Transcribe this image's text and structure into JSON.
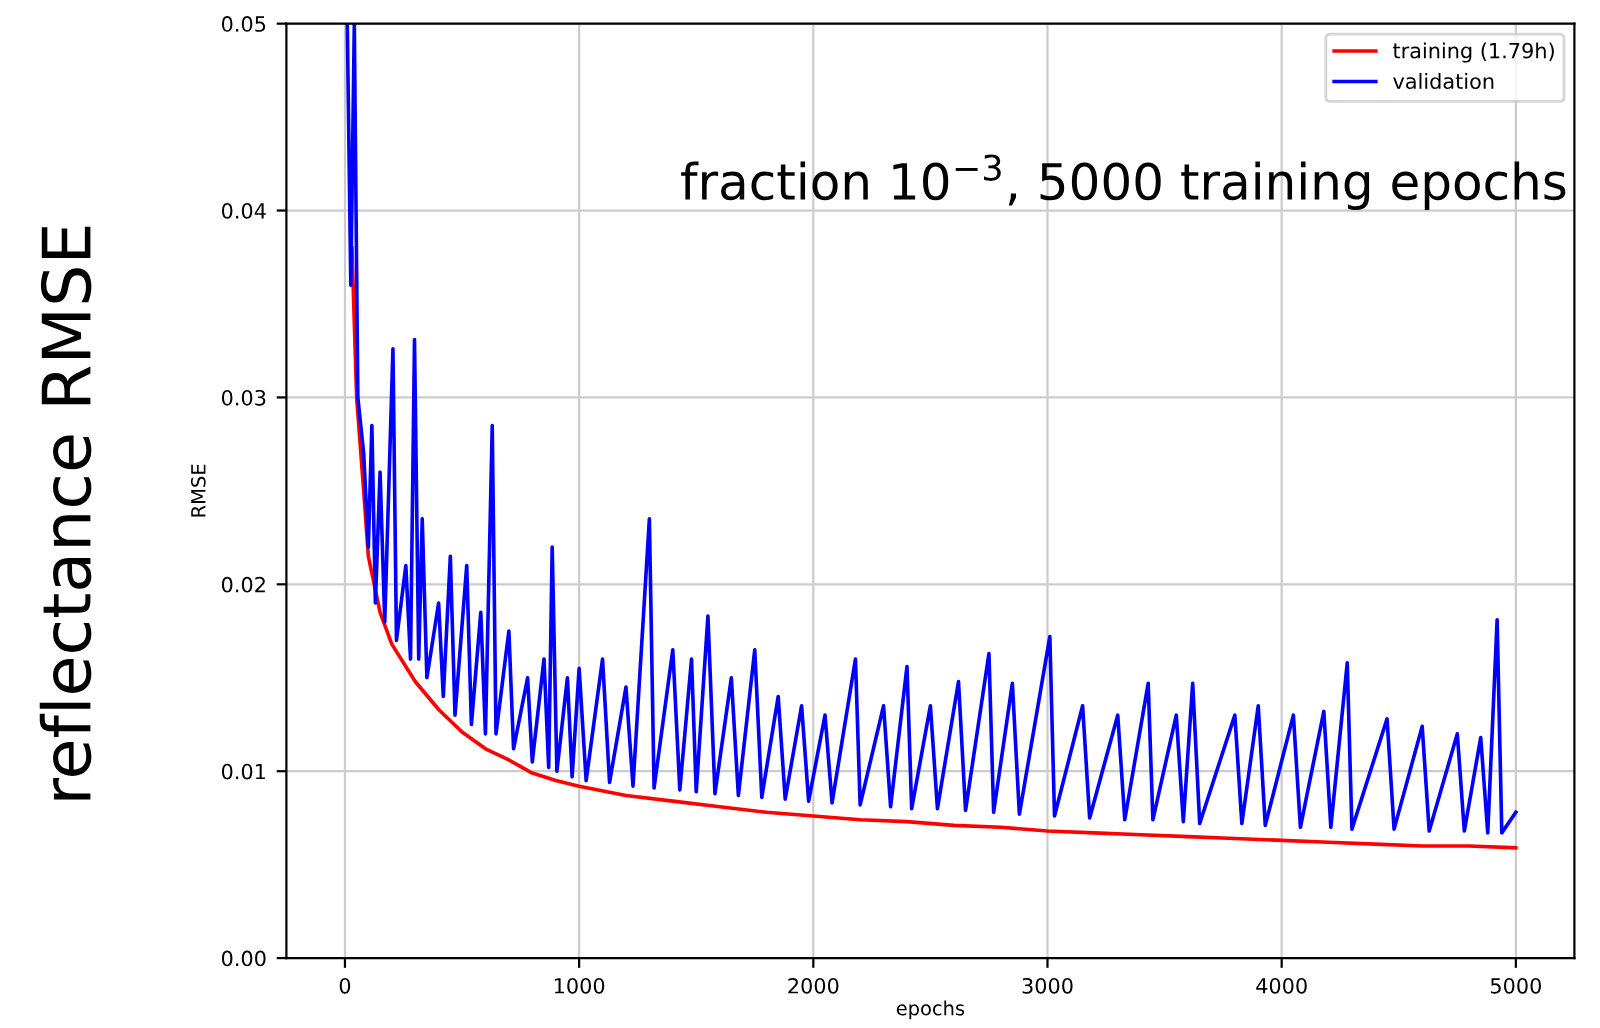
{
  "chart_data": {
    "type": "line",
    "title": "fraction 10$^{−3}$, 5000 training epochs",
    "xlabel": "epochs",
    "ylabel": "RMSE",
    "annotations": [
      "reflectance RMSE"
    ],
    "xlim": [
      -250,
      5250
    ],
    "ylim": [
      0,
      0.05
    ],
    "xticks": [
      0,
      1000,
      2000,
      3000,
      4000,
      5000
    ],
    "yticks": [
      {
        "value": 0,
        "label": "0.00"
      },
      {
        "value": 0.01,
        "label": "0.01"
      },
      {
        "value": 0.02,
        "label": "0.02"
      },
      {
        "value": 0.03,
        "label": "0.03"
      },
      {
        "value": 0.04,
        "label": "0.04"
      },
      {
        "value": 0.05,
        "label": "0.05"
      }
    ],
    "grid": true,
    "legend": "top right",
    "series": [
      {
        "name": "training (1.79h)",
        "color": "#ff0000",
        "x": [
          30,
          50,
          80,
          100,
          150,
          200,
          300,
          400,
          500,
          600,
          700,
          800,
          900,
          1000,
          1200,
          1400,
          1600,
          1800,
          2000,
          2200,
          2400,
          2600,
          2800,
          3000,
          3200,
          3400,
          3600,
          3800,
          4000,
          4200,
          4400,
          4600,
          4800,
          5000
        ],
        "values": [
          0.038,
          0.03,
          0.025,
          0.0215,
          0.0185,
          0.0168,
          0.0148,
          0.0133,
          0.0121,
          0.0112,
          0.0106,
          0.0099,
          0.0095,
          0.0092,
          0.0087,
          0.0084,
          0.0081,
          0.0078,
          0.0076,
          0.0074,
          0.0073,
          0.0071,
          0.007,
          0.0068,
          0.0067,
          0.0066,
          0.0065,
          0.0064,
          0.0063,
          0.0062,
          0.0061,
          0.006,
          0.006,
          0.0059
        ]
      },
      {
        "name": "validation",
        "color": "#0000ff",
        "x": [
          10,
          25,
          40,
          55,
          80,
          100,
          115,
          130,
          150,
          170,
          205,
          220,
          260,
          280,
          297,
          315,
          330,
          350,
          400,
          420,
          450,
          470,
          520,
          540,
          580,
          600,
          629,
          645,
          700,
          720,
          780,
          800,
          850,
          870,
          885,
          905,
          950,
          970,
          1000,
          1030,
          1100,
          1130,
          1200,
          1230,
          1300,
          1320,
          1400,
          1430,
          1480,
          1500,
          1550,
          1580,
          1650,
          1680,
          1750,
          1780,
          1850,
          1880,
          1950,
          1980,
          2050,
          2080,
          2180,
          2200,
          2300,
          2330,
          2400,
          2420,
          2500,
          2530,
          2620,
          2650,
          2750,
          2770,
          2850,
          2880,
          3010,
          3030,
          3150,
          3180,
          3300,
          3330,
          3430,
          3450,
          3550,
          3580,
          3620,
          3650,
          3800,
          3830,
          3900,
          3930,
          4050,
          4080,
          4180,
          4210,
          4280,
          4300,
          4450,
          4480,
          4600,
          4630,
          4750,
          4780,
          4850,
          4880,
          4920,
          4940,
          5000
        ],
        "values": [
          0.05,
          0.036,
          0.05,
          0.03,
          0.027,
          0.022,
          0.0285,
          0.019,
          0.026,
          0.018,
          0.0326,
          0.017,
          0.021,
          0.016,
          0.0331,
          0.016,
          0.0235,
          0.015,
          0.019,
          0.014,
          0.0215,
          0.013,
          0.021,
          0.0125,
          0.0185,
          0.012,
          0.0285,
          0.012,
          0.0175,
          0.0112,
          0.015,
          0.0105,
          0.016,
          0.0102,
          0.022,
          0.01,
          0.015,
          0.0097,
          0.0155,
          0.0095,
          0.016,
          0.0094,
          0.0145,
          0.0092,
          0.0235,
          0.0091,
          0.0165,
          0.009,
          0.016,
          0.0089,
          0.0183,
          0.0088,
          0.015,
          0.0087,
          0.0165,
          0.0086,
          0.014,
          0.0085,
          0.0135,
          0.0084,
          0.013,
          0.0083,
          0.016,
          0.0082,
          0.0135,
          0.0081,
          0.0156,
          0.008,
          0.0135,
          0.008,
          0.0148,
          0.0079,
          0.0163,
          0.0078,
          0.0147,
          0.0077,
          0.0172,
          0.0076,
          0.0135,
          0.0075,
          0.013,
          0.0074,
          0.0147,
          0.0074,
          0.013,
          0.0073,
          0.0147,
          0.0072,
          0.013,
          0.0072,
          0.0135,
          0.0071,
          0.013,
          0.007,
          0.0132,
          0.007,
          0.0158,
          0.0069,
          0.0128,
          0.0069,
          0.0124,
          0.0068,
          0.012,
          0.0068,
          0.0118,
          0.0067,
          0.0181,
          0.0067,
          0.0078
        ]
      }
    ]
  }
}
